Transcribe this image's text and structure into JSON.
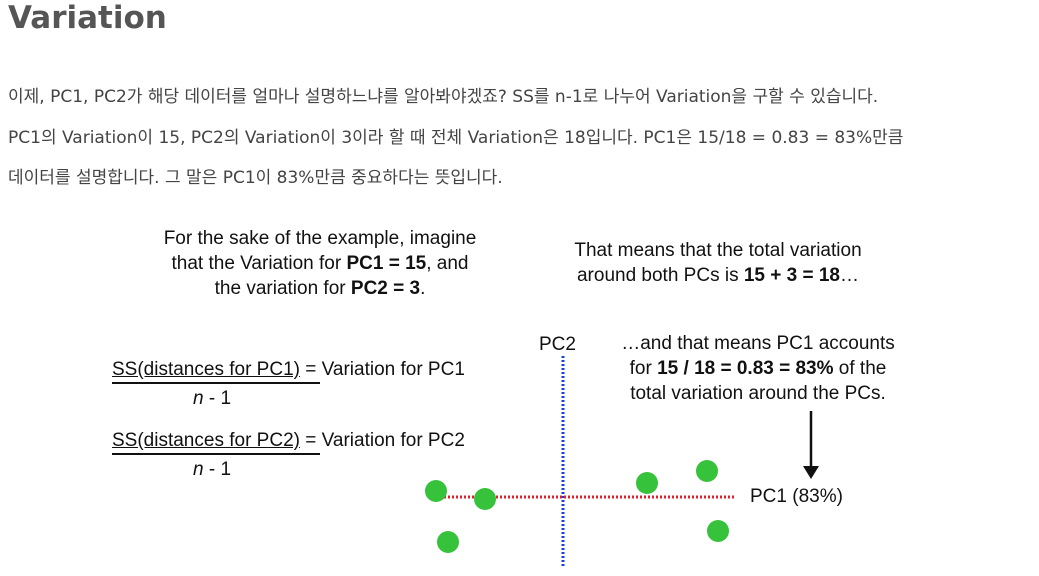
{
  "heading": "Variation",
  "paragraph": {
    "line1": "이제, PC1, PC2가 해당 데이터를 얼마나 설명하느냐를 알아봐야겠죠? SS를 n-1로 나누어 Variation을 구할 수 있습니다.",
    "line2": "PC1의 Variation이 15, PC2의 Variation이 3이라 할 때 전체 Variation은 18입니다. PC1은 15/18 = 0.83 = 83%만큼",
    "line3": "데이터를 설명합니다. 그 말은 PC1이 83%만큼 중요하다는 뜻입니다."
  },
  "figure": {
    "left_text": {
      "line1": "For the sake of the example, imagine",
      "line2_pre": "that the Variation for ",
      "line2_bold": "PC1 = 15",
      "line2_post": ", and",
      "line3_pre": "the variation for ",
      "line3_bold": "PC2 = 3",
      "line3_post": "."
    },
    "right_text": {
      "line1": "That means that the total variation",
      "line2_pre": "around both PCs is ",
      "line2_bold": "15 + 3 = 18",
      "line2_post": "…"
    },
    "formula1": {
      "numerator_u": "SS(distances for PC1)",
      "numerator_rest": " = Variation for PC1",
      "denominator_italic": "n",
      "denominator_rest": " - 1"
    },
    "formula2": {
      "numerator_u": "SS(distances for PC2)",
      "numerator_rest": " = Variation for PC2",
      "denominator_italic": "n",
      "denominator_rest": " - 1"
    },
    "accounts_text": {
      "line1": "…and that means PC1 accounts",
      "line2_pre": "for ",
      "line2_bold": "15 / 18 = 0.83 = 83%",
      "line2_post": " of the",
      "line3": "total variation around the PCs."
    },
    "pc2_label": "PC2",
    "pc1_label": "PC1 (83%)",
    "colors": {
      "pc1_line": "#e0202a",
      "pc2_line": "#1a3fd6",
      "points": "#36c23a"
    }
  }
}
